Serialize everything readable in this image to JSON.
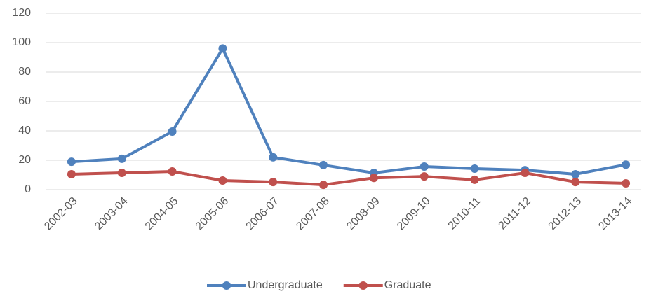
{
  "chart_data": {
    "type": "line",
    "categories": [
      "2002-03",
      "2003-04",
      "2004-05",
      "2005-06",
      "2006-07",
      "2007-08",
      "2008-09",
      "2009-10",
      "2010-11",
      "2011-12",
      "2012-13",
      "2013-14"
    ],
    "series": [
      {
        "name": "Undergraduate",
        "color": "#4f81bd",
        "values": [
          19,
          21,
          39.5,
          96,
          22,
          16.7,
          11.4,
          15.7,
          14.3,
          13.3,
          10.5,
          17
        ]
      },
      {
        "name": "Graduate",
        "color": "#c0504d",
        "values": [
          10.5,
          11.4,
          12.4,
          6.2,
          5.2,
          3.3,
          8,
          9,
          6.7,
          11.4,
          5.2,
          4.3
        ]
      }
    ],
    "ylim": [
      0,
      120
    ],
    "yticks": [
      0,
      20,
      40,
      60,
      80,
      100,
      120
    ],
    "grid": true,
    "legend": "bottom"
  }
}
